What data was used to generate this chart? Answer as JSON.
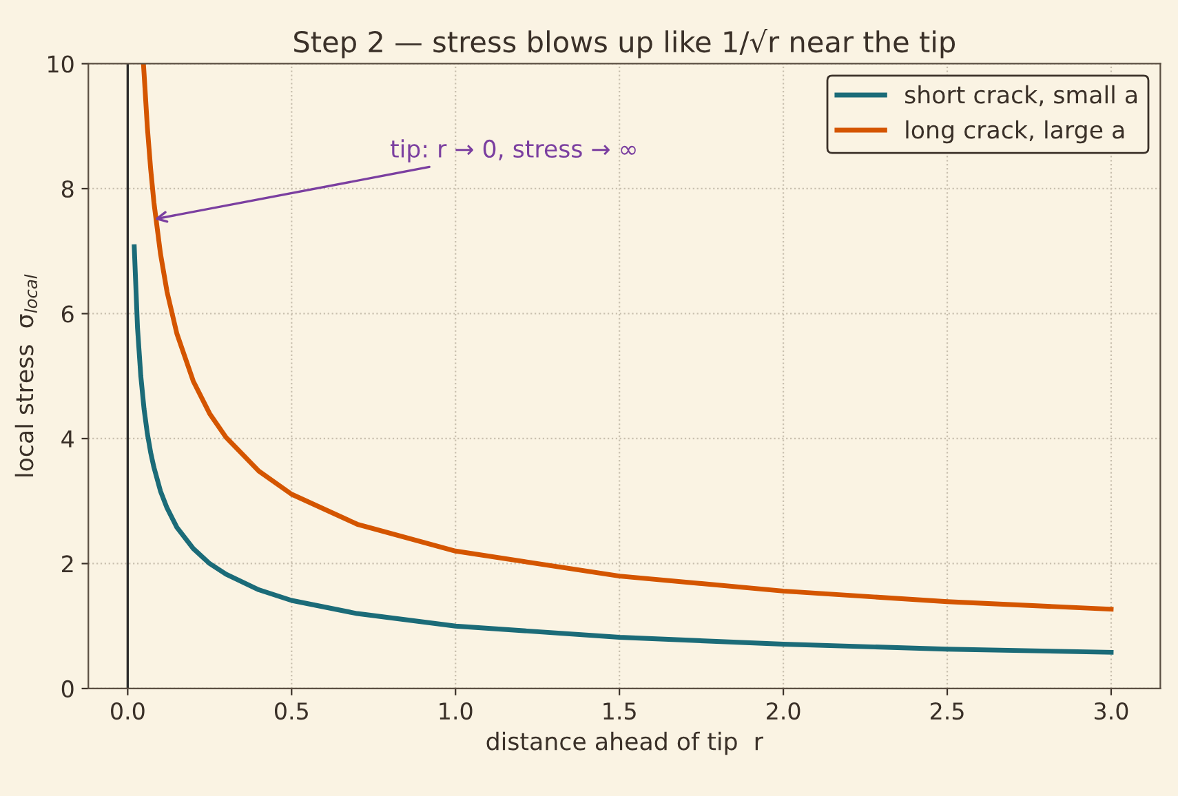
{
  "chart_data": {
    "type": "line",
    "title": "Step 2 — stress blows up like 1/√r near the tip",
    "xlabel": "distance ahead of tip  r",
    "ylabel": "local stress  σ$_{local}$",
    "series": [
      {
        "name": "short crack, small a",
        "color": "#1b6b78",
        "x": [
          0.02,
          0.03,
          0.04,
          0.05,
          0.06,
          0.07,
          0.08,
          0.1,
          0.12,
          0.15,
          0.2,
          0.25,
          0.3,
          0.4,
          0.5,
          0.7,
          1.0,
          1.5,
          2.0,
          2.5,
          3.0
        ],
        "values": [
          7.07,
          5.77,
          5.0,
          4.47,
          4.08,
          3.78,
          3.54,
          3.16,
          2.89,
          2.58,
          2.24,
          2.0,
          1.83,
          1.58,
          1.41,
          1.2,
          1.0,
          0.82,
          0.71,
          0.63,
          0.58
        ]
      },
      {
        "name": "long crack, large a",
        "color": "#d45500",
        "x": [
          0.048,
          0.05,
          0.06,
          0.07,
          0.08,
          0.1,
          0.12,
          0.15,
          0.2,
          0.25,
          0.3,
          0.4,
          0.5,
          0.7,
          1.0,
          1.5,
          2.0,
          2.5,
          3.0
        ],
        "values": [
          10.0,
          9.84,
          8.98,
          8.32,
          7.78,
          6.96,
          6.35,
          5.68,
          4.92,
          4.4,
          4.02,
          3.48,
          3.11,
          2.63,
          2.2,
          1.8,
          1.56,
          1.39,
          1.27
        ]
      }
    ],
    "annotations": [
      {
        "text": "tip: r → 0, stress → ∞",
        "x": 0.07,
        "y": 7.5
      }
    ],
    "ref_lines": [
      {
        "axis": "x",
        "value": 0,
        "color": "#2b2b2b"
      }
    ],
    "xlim": [
      -0.12,
      3.15
    ],
    "xticks": [
      {
        "value": 0,
        "label": "0.0"
      },
      0.5,
      {
        "value": 1,
        "label": "1.0"
      },
      1.5,
      {
        "value": 2,
        "label": "2.0"
      },
      2.5,
      {
        "value": 3,
        "label": "3.0"
      }
    ],
    "ylim": [
      0,
      10
    ],
    "yticks": [
      0,
      2,
      4,
      6,
      8,
      10
    ],
    "grid": true,
    "legend": "top right",
    "line_style": "solid",
    "marker": "none"
  }
}
